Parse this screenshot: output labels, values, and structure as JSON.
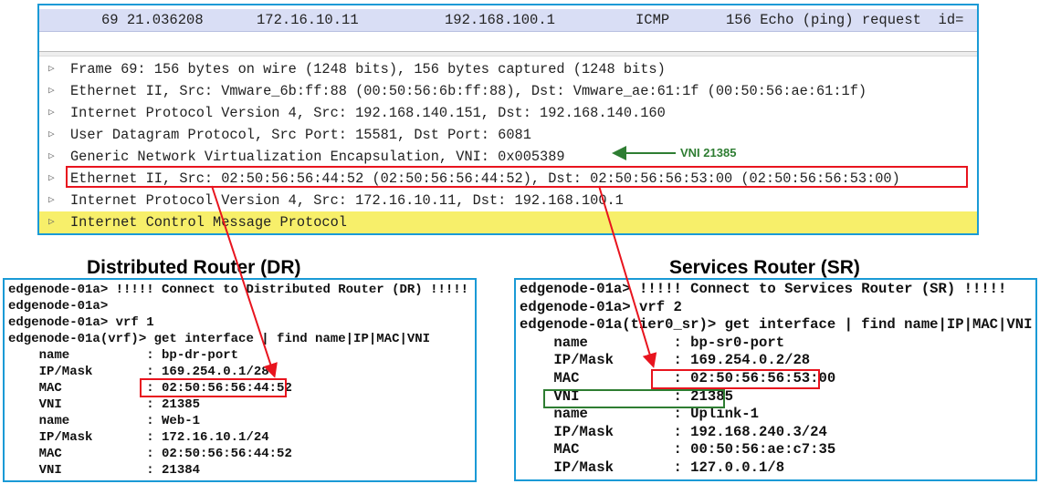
{
  "packet_row": {
    "no_time": "69 21.036208",
    "source": "172.16.10.11",
    "destination": "192.168.100.1",
    "protocol": "ICMP",
    "info": "156 Echo (ping) request  id="
  },
  "tree": [
    "Frame 69: 156 bytes on wire (1248 bits), 156 bytes captured (1248 bits)",
    "Ethernet II, Src: Vmware_6b:ff:88 (00:50:56:6b:ff:88), Dst: Vmware_ae:61:1f (00:50:56:ae:61:1f)",
    "Internet Protocol Version 4, Src: 192.168.140.151, Dst: 192.168.140.160",
    "User Datagram Protocol, Src Port: 15581, Dst Port: 6081",
    "Generic Network Virtualization Encapsulation, VNI: 0x005389",
    "Ethernet II, Src: 02:50:56:56:44:52 (02:50:56:56:44:52), Dst: 02:50:56:56:53:00 (02:50:56:56:53:00)",
    "Internet Protocol Version 4, Src: 172.16.10.11, Dst: 192.168.100.1",
    "Internet Control Message Protocol"
  ],
  "vni_annotation": "VNI 21385",
  "colors": {
    "frame": "#1a9ad6",
    "highlight_red": "#e8141e",
    "highlight_green": "#2e7d32",
    "selected_row": "#f7ef6a"
  },
  "dr": {
    "title": "Distributed Router (DR)",
    "lines": [
      "edgenode-01a> !!!!! Connect to Distributed Router (DR) !!!!!",
      "edgenode-01a>",
      "edgenode-01a> vrf 1",
      "edgenode-01a(vrf)> get interface | find name|IP|MAC|VNI",
      "    name          : bp-dr-port",
      "    IP/Mask       : 169.254.0.1/28",
      "    MAC           : 02:50:56:56:44:52",
      "    VNI           : 21385",
      "    name          : Web-1",
      "    IP/Mask       : 172.16.10.1/24",
      "    MAC           : 02:50:56:56:44:52",
      "    VNI           : 21384"
    ]
  },
  "sr": {
    "title": "Services Router (SR)",
    "lines": [
      "edgenode-01a> !!!!! Connect to Services Router (SR) !!!!!",
      "edgenode-01a> vrf 2",
      "edgenode-01a(tier0_sr)> get interface | find name|IP|MAC|VNI",
      "    name          : bp-sr0-port",
      "    IP/Mask       : 169.254.0.2/28",
      "    MAC           : 02:50:56:56:53:00",
      "    VNI           : 21385",
      "    name          : Uplink-1",
      "    IP/Mask       : 192.168.240.3/24",
      "    MAC           : 00:50:56:ae:c7:35",
      "    IP/Mask       : 127.0.0.1/8"
    ]
  }
}
